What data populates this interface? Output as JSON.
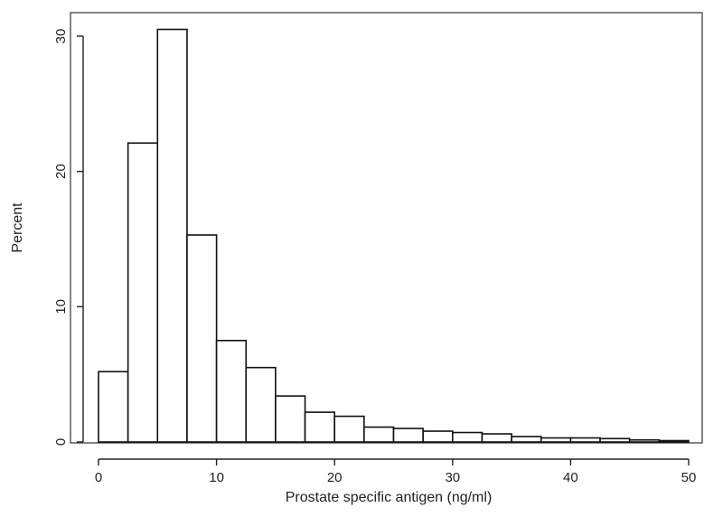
{
  "chart_data": {
    "type": "bar",
    "subtype": "histogram",
    "title": "",
    "xlabel": "Prostate specific antigen (ng/ml)",
    "ylabel": "Percent",
    "xlim": [
      0,
      50
    ],
    "ylim": [
      0,
      30
    ],
    "bin_width": 2.5,
    "bin_edges": [
      0,
      2.5,
      5,
      7.5,
      10,
      12.5,
      15,
      17.5,
      20,
      22.5,
      25,
      27.5,
      30,
      32.5,
      35,
      37.5,
      40,
      42.5,
      45,
      47.5,
      50
    ],
    "values": [
      5.2,
      22.1,
      30.5,
      15.3,
      7.5,
      5.5,
      3.4,
      2.2,
      1.9,
      1.1,
      1.0,
      0.8,
      0.7,
      0.6,
      0.4,
      0.3,
      0.3,
      0.25,
      0.15,
      0.1
    ],
    "x_ticks": [
      0,
      10,
      20,
      30,
      40,
      50
    ],
    "x_tick_labels": [
      "0",
      "10",
      "20",
      "30",
      "40",
      "50"
    ],
    "y_ticks": [
      0,
      10,
      20,
      30
    ],
    "y_tick_labels": [
      "0",
      "10",
      "20",
      "30"
    ],
    "grid": false,
    "legend": "none"
  }
}
